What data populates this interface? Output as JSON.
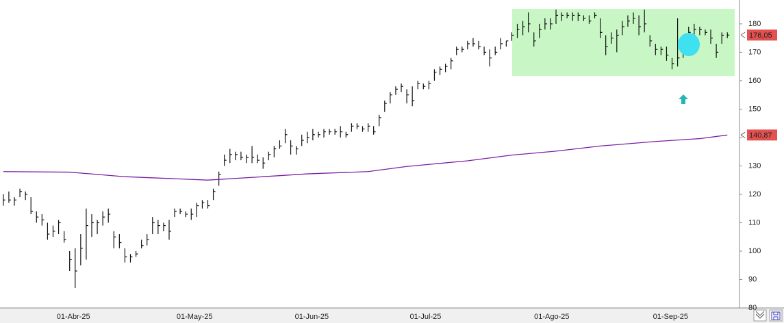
{
  "chart_data": {
    "type": "hlc",
    "ylim": [
      80,
      188.4
    ],
    "yticks": [
      80,
      90,
      100,
      110,
      120,
      130,
      140,
      150,
      160,
      170,
      180
    ],
    "xlim": [
      -0.6,
      133.2
    ],
    "xticks": [
      {
        "value": 9.4,
        "label": "01-Abr-25"
      },
      {
        "value": 31.1,
        "label": "01-May-25"
      },
      {
        "value": 52.5,
        "label": "01-Jun-25"
      },
      {
        "value": 73.3,
        "label": "01-Jul-25"
      },
      {
        "value": 95.8,
        "label": "01-Ago-25"
      },
      {
        "value": 117.3,
        "label": "01-Sep-25"
      }
    ],
    "color": "#111111",
    "high": [
      120,
      121,
      119,
      122,
      121,
      119,
      114,
      113,
      110,
      109,
      111,
      107,
      100,
      101,
      106,
      115,
      113,
      111,
      114,
      115,
      107,
      106,
      101,
      99,
      100,
      104,
      106,
      112,
      111,
      110,
      111,
      115,
      115,
      114,
      115,
      117,
      118,
      118,
      122,
      128,
      134,
      136,
      135,
      135,
      134,
      137,
      134,
      133,
      135,
      137,
      139,
      143,
      139,
      137,
      141,
      142,
      143,
      142,
      143,
      143,
      143,
      144,
      142,
      145,
      145,
      144,
      145,
      144,
      148,
      153,
      156,
      158,
      159,
      157,
      158,
      160,
      159,
      160,
      164,
      165,
      166,
      168,
      172,
      172,
      174,
      175,
      174,
      172,
      171,
      172,
      175,
      174,
      177,
      180,
      181,
      184,
      177,
      180,
      182,
      182,
      185,
      184,
      184,
      184,
      184,
      183,
      183,
      184,
      182,
      176,
      177,
      178,
      181,
      183,
      184,
      183,
      185,
      176,
      173,
      172,
      172,
      168,
      182,
      171,
      179,
      180,
      179,
      178,
      178,
      173,
      177,
      177
    ],
    "low": [
      116,
      117,
      116,
      119,
      118,
      113,
      110,
      109,
      104,
      105,
      106,
      103,
      93,
      87,
      95,
      97,
      105,
      106,
      109,
      110,
      101,
      101,
      96,
      96,
      98,
      101,
      102,
      106,
      106,
      107,
      104,
      112,
      113,
      112,
      111,
      112,
      115,
      115,
      118,
      123,
      130,
      131,
      132,
      132,
      131,
      131,
      131,
      129,
      132,
      133,
      136,
      138,
      134,
      134,
      137,
      138,
      139,
      140,
      140,
      141,
      141,
      140,
      140,
      142,
      143,
      142,
      142,
      141,
      144,
      149,
      152,
      155,
      156,
      152,
      151,
      157,
      157,
      157,
      160,
      162,
      163,
      164,
      169,
      170,
      171,
      172,
      171,
      169,
      165,
      169,
      171,
      172,
      174,
      175,
      176,
      177,
      172,
      175,
      178,
      178,
      180,
      181,
      182,
      181,
      181,
      181,
      180,
      182,
      175,
      169,
      173,
      170,
      176,
      179,
      180,
      176,
      177,
      172,
      169,
      169,
      167,
      164,
      165,
      168,
      172,
      176,
      176,
      176,
      173,
      168,
      173,
      175
    ],
    "close": [
      118,
      118,
      118,
      121,
      120,
      114,
      112,
      111,
      106,
      107,
      110,
      104,
      97,
      93,
      101,
      109,
      110,
      110,
      112,
      113,
      105,
      103,
      98,
      98,
      99,
      102,
      104,
      110,
      109,
      109,
      107,
      114,
      114,
      113,
      113,
      116,
      117,
      116,
      121,
      127,
      132,
      134,
      134,
      133,
      133,
      133,
      132,
      131,
      134,
      136,
      137,
      141,
      137,
      136,
      139,
      140,
      141,
      141,
      142,
      142,
      142,
      142,
      141,
      144,
      144,
      143,
      144,
      142,
      147,
      152,
      155,
      157,
      158,
      155,
      153,
      159,
      158,
      159,
      163,
      164,
      165,
      167,
      171,
      171,
      173,
      173,
      172,
      170,
      168,
      170,
      173,
      174,
      176,
      178,
      179,
      180,
      174,
      178,
      180,
      180,
      183,
      183,
      183,
      183,
      183,
      182,
      181,
      183,
      177,
      172,
      175,
      176,
      179,
      181,
      182,
      179,
      180,
      174,
      171,
      171,
      169,
      166,
      168,
      170,
      177,
      178,
      178,
      177,
      175,
      170,
      176,
      176.05
    ],
    "last_price": {
      "value": 176.05,
      "label": "176,05"
    },
    "moving_average": {
      "color": "#7b1fa2",
      "x": [
        0,
        12,
        22,
        37,
        47,
        55,
        66,
        73,
        84,
        92,
        100,
        108,
        118,
        126,
        131
      ],
      "values": [
        128,
        127.8,
        126.2,
        125,
        126.2,
        127.2,
        128,
        129.8,
        131.8,
        133.8,
        135.2,
        137,
        138.6,
        139.6,
        140.87
      ],
      "last_label": "140,87"
    }
  }
}
